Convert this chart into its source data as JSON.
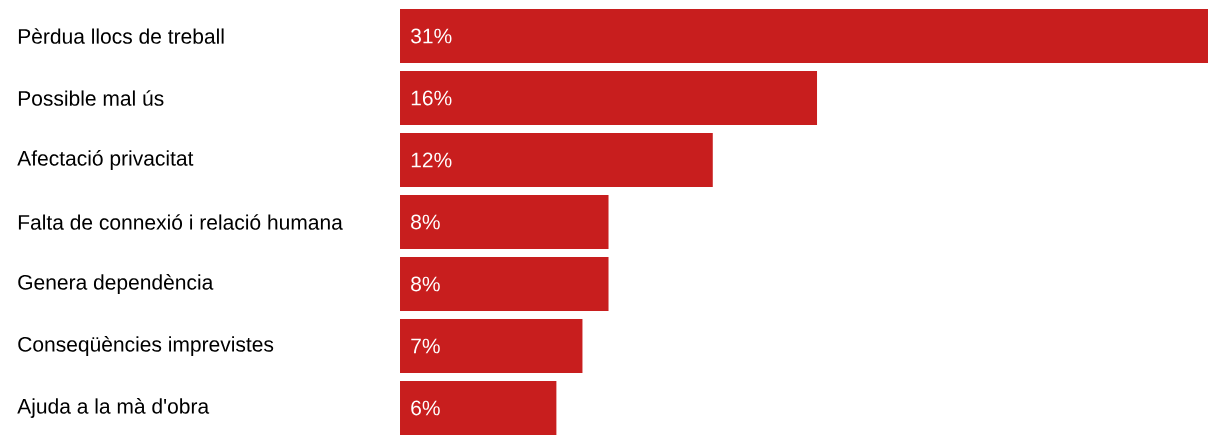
{
  "chart_data": {
    "type": "bar",
    "orientation": "horizontal",
    "categories": [
      "Pèrdua llocs de treball",
      "Possible mal ús",
      "Afectació privacitat",
      "Falta de connexió i relació humana",
      "Genera dependència",
      "Conseqüències imprevistes",
      "Ajuda a la mà d'obra"
    ],
    "values": [
      31,
      16,
      12,
      8,
      8,
      7,
      6
    ],
    "value_labels": [
      "31%",
      "16%",
      "12%",
      "8%",
      "8%",
      "7%",
      "6%"
    ],
    "color": "#c81e1e",
    "tick_labels": "y"
  }
}
